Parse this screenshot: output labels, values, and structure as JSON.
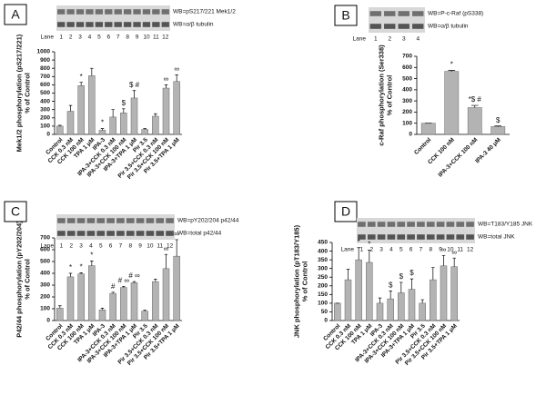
{
  "chart_data": [
    {
      "type": "bar",
      "panel": "A",
      "ylabel": [
        "Mek1/2 phosphorylation (pS217/221)",
        "% of Control"
      ],
      "categories": [
        "Control",
        "CCK 0.3 nM",
        "CCK 100 nM",
        "TPA 1 μM",
        "IPA-3",
        "IPA-3+CCK 0.3 nM",
        "IPA-3+CCK 100 nM",
        "IPA-3+TPA 1 μM",
        "Pir 3.5",
        "Pir 3.5+CCK 0.3 nM",
        "Pir 3.5+CCK 100 nM",
        "Pir 3.5+TPA 1 μM"
      ],
      "values": [
        100,
        280,
        590,
        710,
        50,
        210,
        260,
        440,
        60,
        220,
        560,
        640
      ],
      "errors": [
        10,
        70,
        40,
        90,
        20,
        90,
        50,
        90,
        10,
        30,
        40,
        80
      ],
      "markers": [
        null,
        null,
        "*",
        null,
        "*",
        null,
        "$",
        "$ #",
        null,
        null,
        "∞",
        "∞"
      ],
      "color": "#b3b3b3",
      "ylim": [
        0,
        1000
      ],
      "yticks": [
        0,
        100,
        200,
        300,
        400,
        500,
        600,
        700,
        800,
        900,
        1000
      ],
      "blot": {
        "labels": [
          "WB=pS217/221 Mek1/2",
          "WB=α/β tubulin"
        ],
        "lane_label": "Lane",
        "lanes": [
          1,
          2,
          3,
          4,
          5,
          6,
          7,
          8,
          9,
          10,
          11,
          12
        ]
      }
    },
    {
      "type": "bar",
      "panel": "B",
      "ylabel": [
        "c-Raf phosphorylation (Ser338)",
        "% of Control"
      ],
      "categories": [
        "Control",
        "CCK 100 nM",
        "IPA-3+CCK 100 nM",
        "IPA-3 40 μM"
      ],
      "values": [
        100,
        565,
        240,
        70
      ],
      "errors": [
        0,
        10,
        20,
        5
      ],
      "markers": [
        null,
        "*",
        "*$ #",
        "$"
      ],
      "color": "#b3b3b3",
      "ylim": [
        0,
        700
      ],
      "yticks": [
        0,
        100,
        200,
        300,
        400,
        500,
        600,
        700
      ],
      "blot": {
        "labels": [
          "WB=P-c-Raf (pS338)",
          "WB=α/β tubulin"
        ],
        "lane_label": "Lane",
        "lanes": [
          1,
          2,
          3,
          4
        ]
      }
    },
    {
      "type": "bar",
      "panel": "C",
      "ylabel": [
        "P42/44 phosphorylation (pY202/204)",
        "% of Control"
      ],
      "categories": [
        "Control",
        "CCK 0.3 nM",
        "CCK 100 nM",
        "TPA 1 μM",
        "IPA-3",
        "IPA-3+CCK 0.3 nM",
        "IPA-3+CCK 100 nM",
        "IPA-3+TPA 1 μM",
        "Pir 3.5",
        "Pir 3.5+CCK 0.3 nM",
        "Pir 3.5+CCK 100 nM",
        "Pir 3.5+TPA 1 μM"
      ],
      "values": [
        105,
        370,
        395,
        465,
        90,
        230,
        280,
        320,
        80,
        330,
        440,
        545
      ],
      "errors": [
        20,
        30,
        10,
        40,
        15,
        10,
        10,
        10,
        10,
        20,
        120,
        140
      ],
      "markers": [
        null,
        "*",
        "*",
        "*",
        null,
        "#",
        "# ∞",
        "# ∞",
        null,
        null,
        "∞",
        "∞"
      ],
      "color": "#b3b3b3",
      "ylim": [
        0,
        700
      ],
      "yticks": [
        0,
        100,
        200,
        300,
        400,
        500,
        600,
        700
      ],
      "blot": {
        "labels": [
          "WB=pY202/204 p42/44",
          "WB=total p42/44"
        ],
        "lane_label": "Lane",
        "lanes": [
          1,
          2,
          3,
          4,
          5,
          6,
          7,
          8,
          9,
          10,
          11,
          12
        ]
      }
    },
    {
      "type": "bar",
      "panel": "D",
      "ylabel": [
        "JNK phosphorylation (pT183/Y185)",
        "% of Control"
      ],
      "categories": [
        "Control",
        "CCK 0.3 nM",
        "CCK 100 nM",
        "TPA 1 μM",
        "IPA-3",
        "IPA-3+CCK 0.3 nM",
        "IPA-3+CCK 100 nM",
        "IPA-3+TPA 1 μM",
        "Pir 3.5",
        "Pir 3.5+CCK 0.3 nM",
        "Pir 3.5+CCK 100 nM",
        "Pir 3.5+TPA 1 μM"
      ],
      "values": [
        100,
        235,
        350,
        335,
        100,
        125,
        160,
        180,
        100,
        235,
        315,
        310
      ],
      "errors": [
        0,
        60,
        70,
        70,
        30,
        45,
        60,
        60,
        20,
        70,
        60,
        50
      ],
      "markers": [
        null,
        null,
        "*",
        "*",
        null,
        "$",
        "$",
        "$",
        null,
        null,
        "∞",
        "∞"
      ],
      "color": "#b3b3b3",
      "ylim": [
        0,
        450
      ],
      "yticks": [
        0,
        50,
        100,
        150,
        200,
        250,
        300,
        350,
        400,
        450
      ],
      "blot": {
        "labels": [
          "WB=T183/Y185 JNK",
          "WB=total JNK"
        ],
        "lane_label": "Lane",
        "lanes": [
          1,
          2,
          3,
          4,
          5,
          6,
          7,
          8,
          9,
          10,
          11,
          12
        ]
      }
    }
  ]
}
